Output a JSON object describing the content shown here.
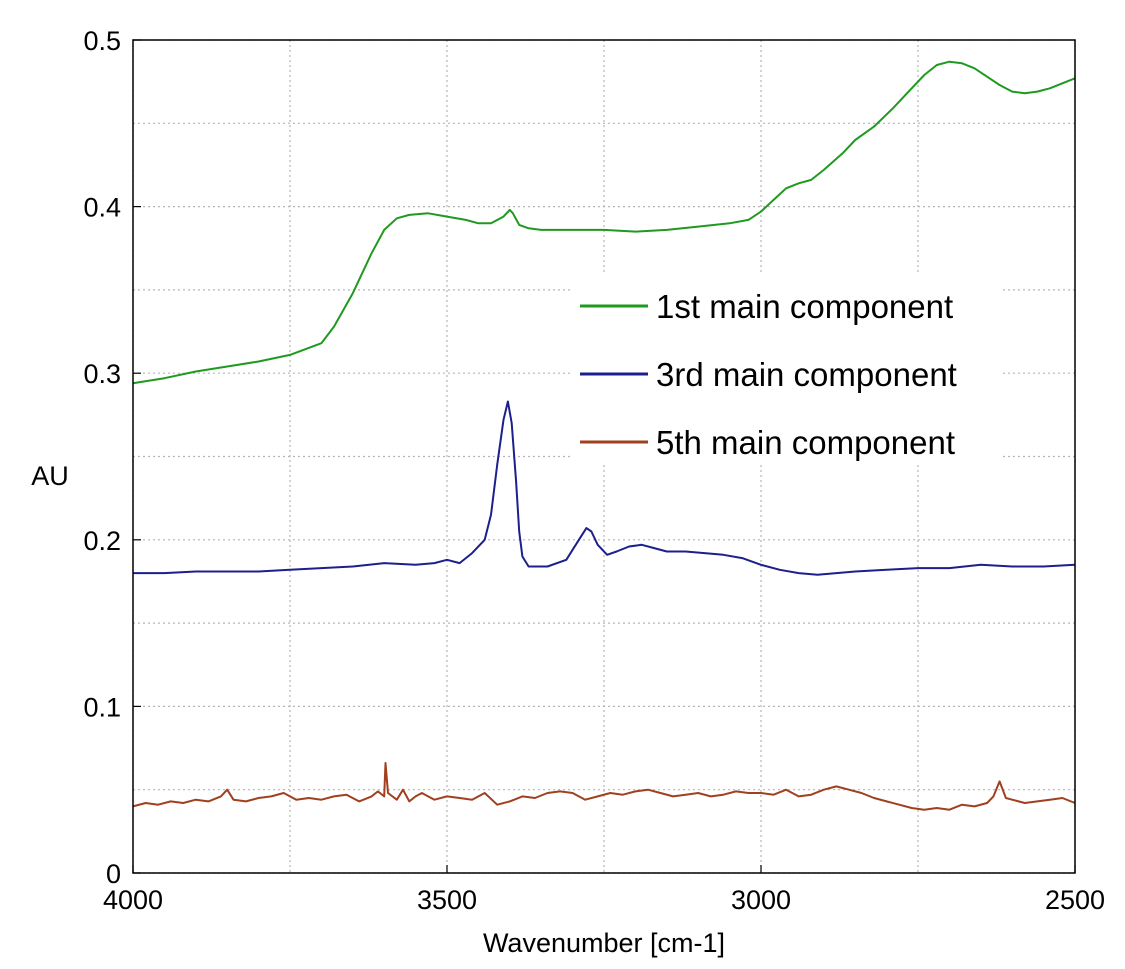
{
  "chart_data": {
    "type": "line",
    "xlabel": "Wavenumber [cm-1]",
    "ylabel": "AU",
    "xlim": [
      4000,
      2500
    ],
    "ylim": [
      0,
      0.5
    ],
    "x_reversed": true,
    "x_ticks": [
      4000,
      3500,
      3000,
      2500
    ],
    "x_tick_labels": [
      "4000",
      "3500",
      "3000",
      "2500"
    ],
    "x_minor_ticks": [
      3750,
      3250,
      2750
    ],
    "y_ticks": [
      0,
      0.1,
      0.2,
      0.3,
      0.4,
      0.5
    ],
    "y_tick_labels": [
      "0",
      "0.1",
      "0.2",
      "0.3",
      "0.4",
      "0.5"
    ],
    "y_minor_ticks": [
      0.05,
      0.15,
      0.25,
      0.35,
      0.45
    ],
    "grid": true,
    "legend_position": "upper-right",
    "series": [
      {
        "name": "1st main component",
        "color": "#1f9a1f",
        "points": [
          [
            4000,
            0.294
          ],
          [
            3950,
            0.297
          ],
          [
            3900,
            0.301
          ],
          [
            3850,
            0.304
          ],
          [
            3800,
            0.307
          ],
          [
            3750,
            0.311
          ],
          [
            3700,
            0.318
          ],
          [
            3680,
            0.328
          ],
          [
            3650,
            0.348
          ],
          [
            3620,
            0.372
          ],
          [
            3600,
            0.386
          ],
          [
            3580,
            0.393
          ],
          [
            3560,
            0.395
          ],
          [
            3530,
            0.396
          ],
          [
            3500,
            0.394
          ],
          [
            3470,
            0.392
          ],
          [
            3450,
            0.39
          ],
          [
            3430,
            0.39
          ],
          [
            3410,
            0.394
          ],
          [
            3400,
            0.398
          ],
          [
            3395,
            0.396
          ],
          [
            3385,
            0.389
          ],
          [
            3370,
            0.387
          ],
          [
            3350,
            0.386
          ],
          [
            3300,
            0.386
          ],
          [
            3250,
            0.386
          ],
          [
            3200,
            0.385
          ],
          [
            3150,
            0.386
          ],
          [
            3100,
            0.388
          ],
          [
            3050,
            0.39
          ],
          [
            3020,
            0.392
          ],
          [
            3000,
            0.397
          ],
          [
            2980,
            0.404
          ],
          [
            2960,
            0.411
          ],
          [
            2940,
            0.414
          ],
          [
            2920,
            0.416
          ],
          [
            2900,
            0.422
          ],
          [
            2870,
            0.432
          ],
          [
            2850,
            0.44
          ],
          [
            2820,
            0.448
          ],
          [
            2790,
            0.459
          ],
          [
            2760,
            0.471
          ],
          [
            2740,
            0.479
          ],
          [
            2720,
            0.485
          ],
          [
            2700,
            0.487
          ],
          [
            2680,
            0.486
          ],
          [
            2660,
            0.483
          ],
          [
            2640,
            0.478
          ],
          [
            2620,
            0.473
          ],
          [
            2600,
            0.469
          ],
          [
            2580,
            0.468
          ],
          [
            2560,
            0.469
          ],
          [
            2540,
            0.471
          ],
          [
            2520,
            0.474
          ],
          [
            2500,
            0.477
          ]
        ]
      },
      {
        "name": "3rd main component",
        "color": "#1c1f8c",
        "points": [
          [
            4000,
            0.18
          ],
          [
            3950,
            0.18
          ],
          [
            3900,
            0.181
          ],
          [
            3850,
            0.181
          ],
          [
            3800,
            0.181
          ],
          [
            3750,
            0.182
          ],
          [
            3700,
            0.183
          ],
          [
            3650,
            0.184
          ],
          [
            3600,
            0.186
          ],
          [
            3550,
            0.185
          ],
          [
            3520,
            0.186
          ],
          [
            3500,
            0.188
          ],
          [
            3480,
            0.186
          ],
          [
            3460,
            0.192
          ],
          [
            3440,
            0.2
          ],
          [
            3430,
            0.215
          ],
          [
            3420,
            0.245
          ],
          [
            3410,
            0.272
          ],
          [
            3403,
            0.283
          ],
          [
            3397,
            0.27
          ],
          [
            3390,
            0.235
          ],
          [
            3385,
            0.205
          ],
          [
            3380,
            0.19
          ],
          [
            3370,
            0.184
          ],
          [
            3340,
            0.184
          ],
          [
            3310,
            0.188
          ],
          [
            3290,
            0.2
          ],
          [
            3278,
            0.207
          ],
          [
            3270,
            0.205
          ],
          [
            3260,
            0.197
          ],
          [
            3245,
            0.191
          ],
          [
            3230,
            0.193
          ],
          [
            3210,
            0.196
          ],
          [
            3190,
            0.197
          ],
          [
            3170,
            0.195
          ],
          [
            3150,
            0.193
          ],
          [
            3120,
            0.193
          ],
          [
            3090,
            0.192
          ],
          [
            3060,
            0.191
          ],
          [
            3030,
            0.189
          ],
          [
            3000,
            0.185
          ],
          [
            2970,
            0.182
          ],
          [
            2940,
            0.18
          ],
          [
            2910,
            0.179
          ],
          [
            2880,
            0.18
          ],
          [
            2850,
            0.181
          ],
          [
            2800,
            0.182
          ],
          [
            2750,
            0.183
          ],
          [
            2700,
            0.183
          ],
          [
            2650,
            0.185
          ],
          [
            2600,
            0.184
          ],
          [
            2550,
            0.184
          ],
          [
            2500,
            0.185
          ]
        ]
      },
      {
        "name": "5th main component",
        "color": "#a0401e",
        "points": [
          [
            4000,
            0.04
          ],
          [
            3980,
            0.042
          ],
          [
            3960,
            0.041
          ],
          [
            3940,
            0.043
          ],
          [
            3920,
            0.042
          ],
          [
            3900,
            0.044
          ],
          [
            3880,
            0.043
          ],
          [
            3860,
            0.046
          ],
          [
            3850,
            0.05
          ],
          [
            3840,
            0.044
          ],
          [
            3820,
            0.043
          ],
          [
            3800,
            0.045
          ],
          [
            3780,
            0.046
          ],
          [
            3760,
            0.048
          ],
          [
            3740,
            0.044
          ],
          [
            3720,
            0.045
          ],
          [
            3700,
            0.044
          ],
          [
            3680,
            0.046
          ],
          [
            3660,
            0.047
          ],
          [
            3640,
            0.043
          ],
          [
            3620,
            0.046
          ],
          [
            3610,
            0.049
          ],
          [
            3600,
            0.046
          ],
          [
            3598,
            0.066
          ],
          [
            3594,
            0.048
          ],
          [
            3580,
            0.044
          ],
          [
            3570,
            0.05
          ],
          [
            3560,
            0.043
          ],
          [
            3550,
            0.046
          ],
          [
            3540,
            0.048
          ],
          [
            3520,
            0.044
          ],
          [
            3500,
            0.046
          ],
          [
            3480,
            0.045
          ],
          [
            3460,
            0.044
          ],
          [
            3440,
            0.048
          ],
          [
            3420,
            0.041
          ],
          [
            3400,
            0.043
          ],
          [
            3380,
            0.046
          ],
          [
            3360,
            0.045
          ],
          [
            3340,
            0.048
          ],
          [
            3320,
            0.049
          ],
          [
            3300,
            0.048
          ],
          [
            3280,
            0.044
          ],
          [
            3260,
            0.046
          ],
          [
            3240,
            0.048
          ],
          [
            3220,
            0.047
          ],
          [
            3200,
            0.049
          ],
          [
            3180,
            0.05
          ],
          [
            3160,
            0.048
          ],
          [
            3140,
            0.046
          ],
          [
            3120,
            0.047
          ],
          [
            3100,
            0.048
          ],
          [
            3080,
            0.046
          ],
          [
            3060,
            0.047
          ],
          [
            3040,
            0.049
          ],
          [
            3020,
            0.048
          ],
          [
            3000,
            0.048
          ],
          [
            2980,
            0.047
          ],
          [
            2960,
            0.05
          ],
          [
            2940,
            0.046
          ],
          [
            2920,
            0.047
          ],
          [
            2900,
            0.05
          ],
          [
            2880,
            0.052
          ],
          [
            2860,
            0.05
          ],
          [
            2840,
            0.048
          ],
          [
            2820,
            0.045
          ],
          [
            2800,
            0.043
          ],
          [
            2780,
            0.041
          ],
          [
            2760,
            0.039
          ],
          [
            2740,
            0.038
          ],
          [
            2720,
            0.039
          ],
          [
            2700,
            0.038
          ],
          [
            2680,
            0.041
          ],
          [
            2660,
            0.04
          ],
          [
            2640,
            0.042
          ],
          [
            2630,
            0.046
          ],
          [
            2620,
            0.055
          ],
          [
            2610,
            0.045
          ],
          [
            2600,
            0.044
          ],
          [
            2580,
            0.042
          ],
          [
            2560,
            0.043
          ],
          [
            2540,
            0.044
          ],
          [
            2520,
            0.045
          ],
          [
            2500,
            0.042
          ]
        ]
      }
    ]
  }
}
